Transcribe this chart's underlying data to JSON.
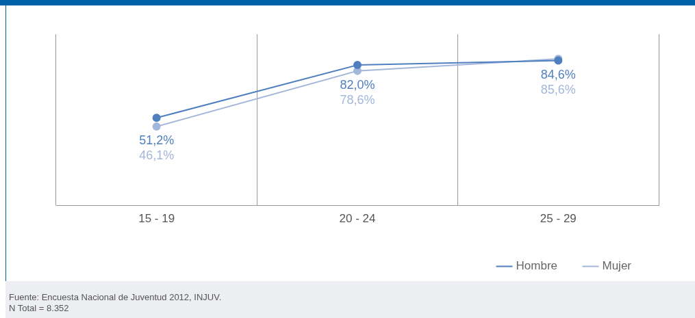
{
  "chart_data": {
    "type": "line",
    "categories": [
      "15 - 19",
      "20 - 24",
      "25 - 29"
    ],
    "series": [
      {
        "name": "Hombre",
        "color": "#4f7fbf",
        "values": [
          51.2,
          82.0,
          84.6
        ],
        "value_labels": [
          "51,2%",
          "82,0%",
          "84,6%"
        ]
      },
      {
        "name": "Mujer",
        "color": "#a3b6db",
        "values": [
          46.1,
          78.6,
          85.6
        ],
        "value_labels": [
          "46,1%",
          "78,6%",
          "85,6%"
        ]
      }
    ],
    "marker": "circle",
    "line_style": "solid",
    "legend": "bottom right",
    "grid": "x",
    "tick_labels": "x",
    "annotations": [
      "Fuente: Encuesta Nacional de Juventud 2012, INJUV.",
      "N Total = 8.352"
    ]
  }
}
